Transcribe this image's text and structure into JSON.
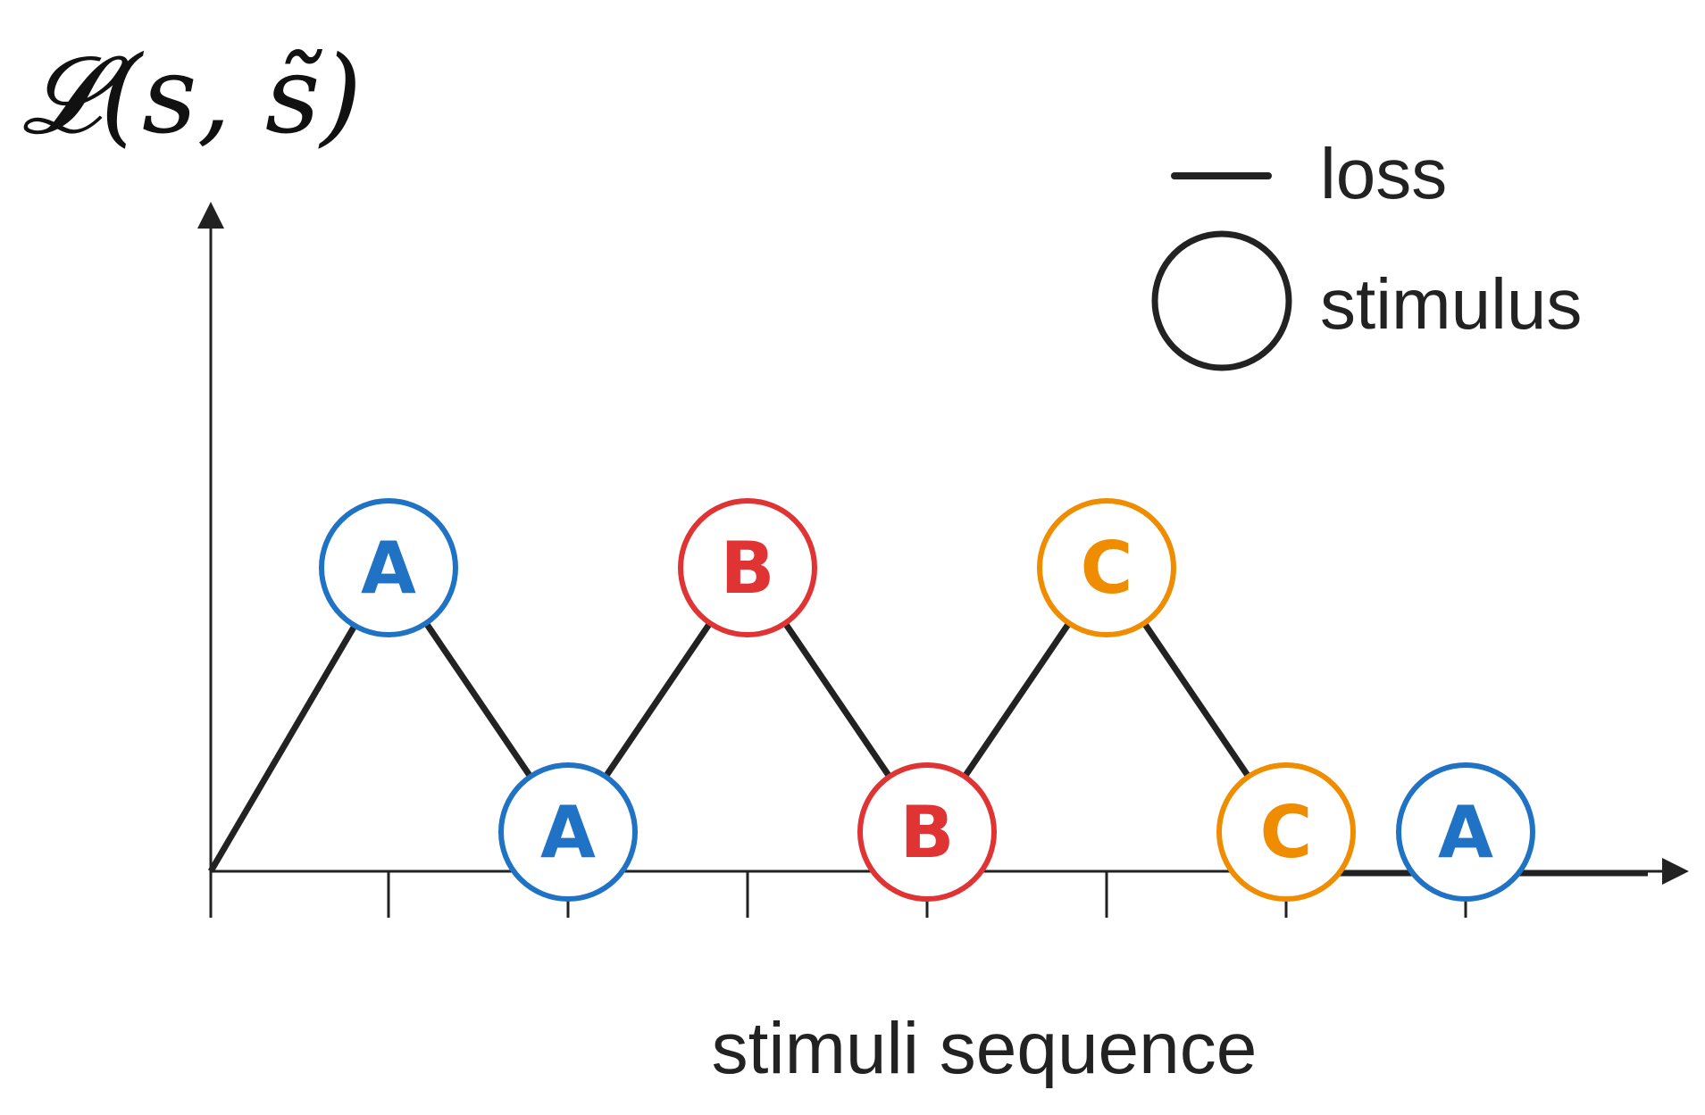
{
  "diagram": {
    "y_axis_label": "𝓛(s, s̃)",
    "x_axis_label": "stimuli sequence",
    "legend": {
      "loss_label": "loss",
      "stimulus_label": "stimulus"
    },
    "colors": {
      "A": "#1f72c4",
      "B": "#e03333",
      "C": "#f08c00",
      "line": "#222222"
    },
    "stimuli": [
      {
        "label": "A",
        "level": "high"
      },
      {
        "label": "A",
        "level": "low"
      },
      {
        "label": "B",
        "level": "high"
      },
      {
        "label": "B",
        "level": "low"
      },
      {
        "label": "C",
        "level": "high"
      },
      {
        "label": "C",
        "level": "low"
      },
      {
        "label": "A",
        "level": "low"
      }
    ]
  }
}
